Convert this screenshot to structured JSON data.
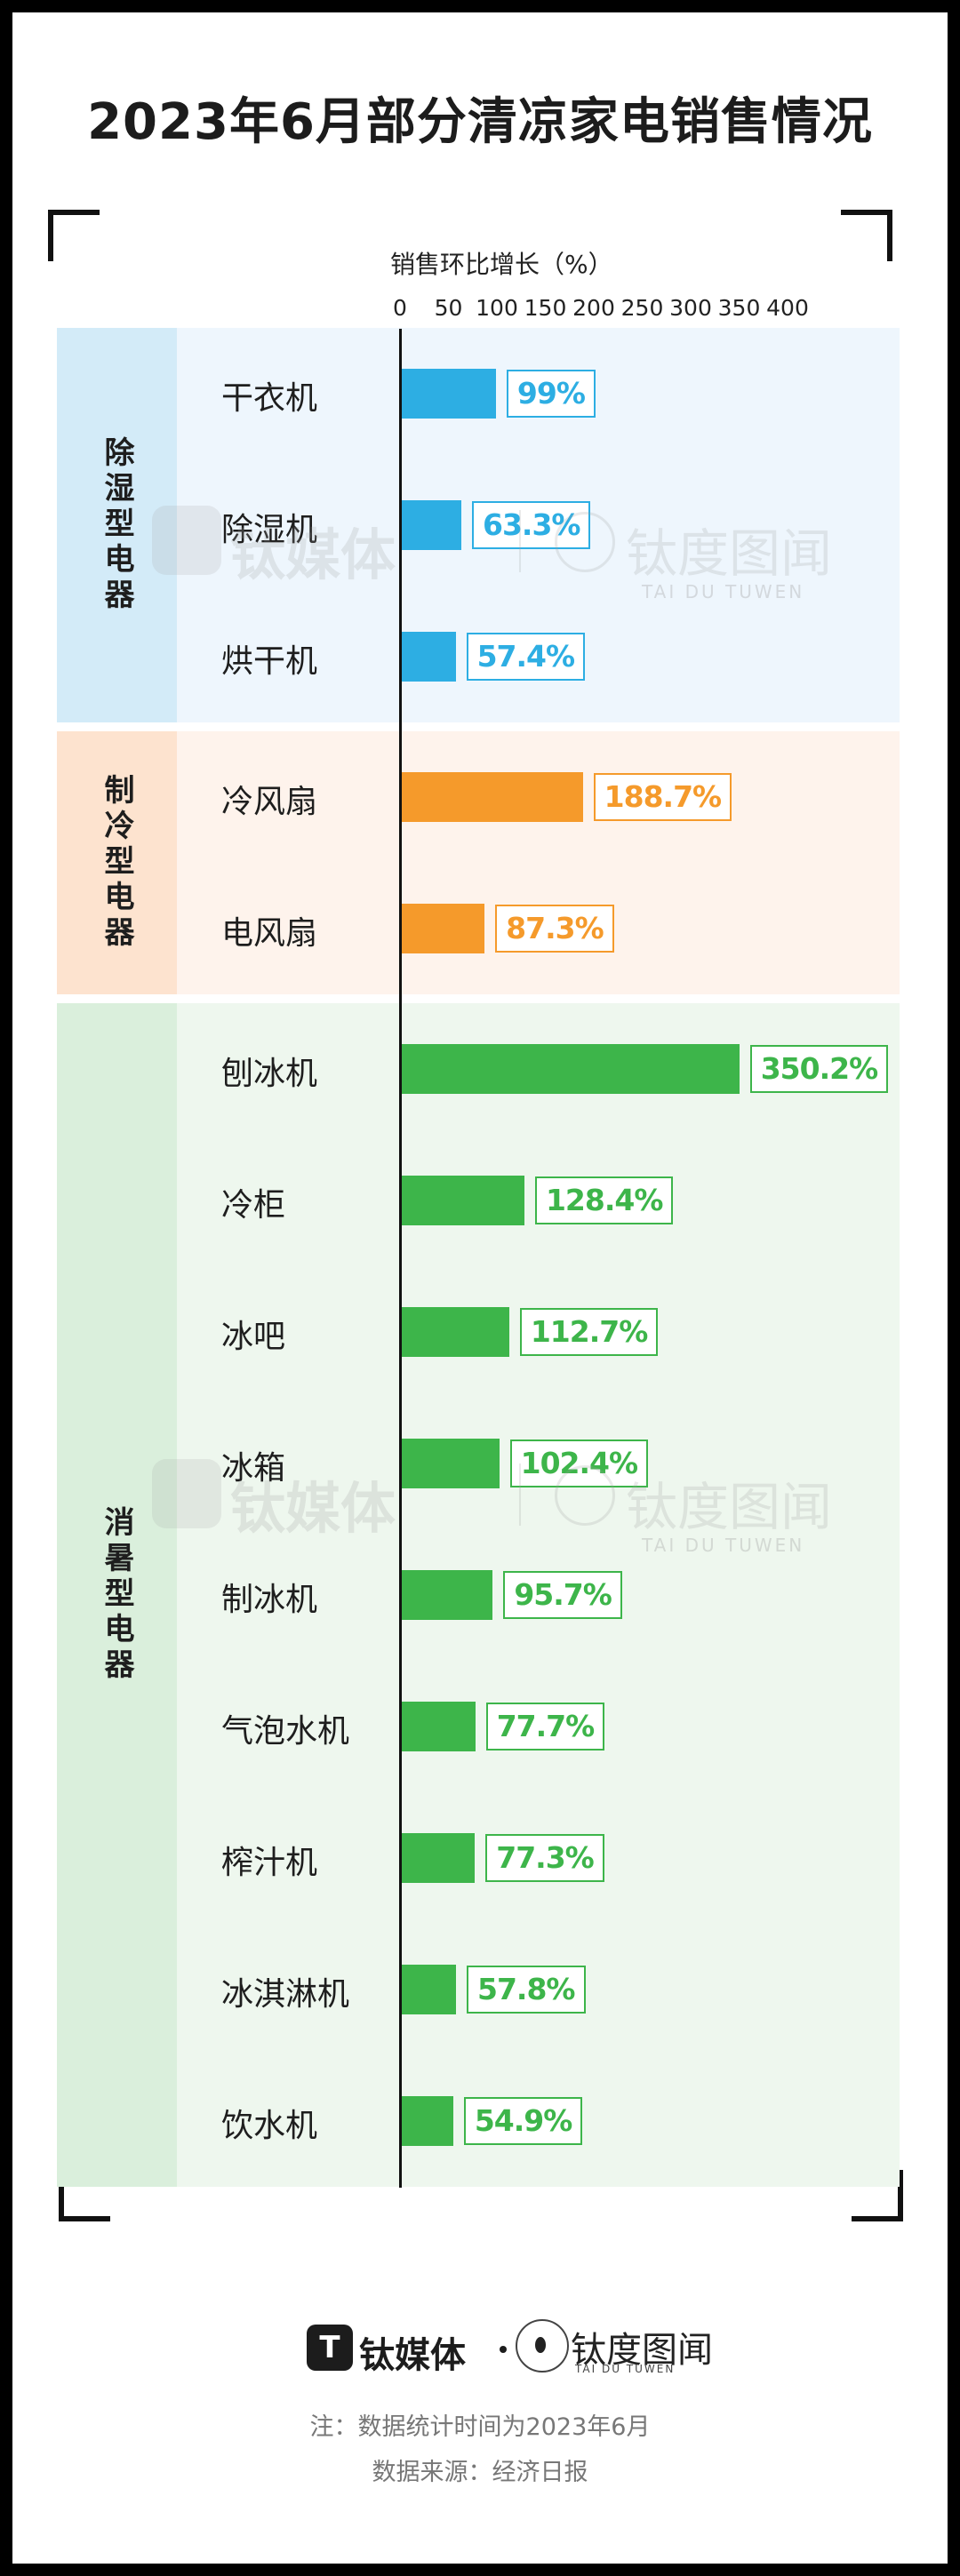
{
  "title": "2023年6月部分清凉家电销售情况",
  "watermark": {
    "brand": "钛媒体",
    "brand2": "钛度图闻",
    "brand2_sub": "TAI DU TUWEN"
  },
  "colors": {
    "dehumid": "#2daee3",
    "cooling": "#f59a2b",
    "summer": "#3db54a"
  },
  "chart_data": {
    "type": "bar",
    "orientation": "horizontal",
    "title": "2023年6月部分清凉家电销售情况",
    "xlabel": "销售环比增长（%）",
    "ylabel": "",
    "xlim": [
      0,
      400
    ],
    "xticks": [
      "0",
      "50",
      "100",
      "150",
      "200",
      "250",
      "300",
      "350",
      "400"
    ],
    "groups": [
      {
        "name": "除湿型电器",
        "color": "#2daee3",
        "band_color": "#eef6fd",
        "label_color": "#d3ebf8",
        "items": [
          {
            "category": "干衣机",
            "value": 99,
            "label": "99%"
          },
          {
            "category": "除湿机",
            "value": 63.3,
            "label": "63.3%"
          },
          {
            "category": "烘干机",
            "value": 57.4,
            "label": "57.4%"
          }
        ]
      },
      {
        "name": "制冷型电器",
        "color": "#f59a2b",
        "band_color": "#fef3ec",
        "label_color": "#fde3cf",
        "items": [
          {
            "category": "冷风扇",
            "value": 188.7,
            "label": "188.7%"
          },
          {
            "category": "电风扇",
            "value": 87.3,
            "label": "87.3%"
          }
        ]
      },
      {
        "name": "消暑型电器",
        "color": "#3db54a",
        "band_color": "#eef7ee",
        "label_color": "#daefdc",
        "items": [
          {
            "category": "刨冰机",
            "value": 350.2,
            "label": "350.2%"
          },
          {
            "category": "冷柜",
            "value": 128.4,
            "label": "128.4%"
          },
          {
            "category": "冰吧",
            "value": 112.7,
            "label": "112.7%"
          },
          {
            "category": "冰箱",
            "value": 102.4,
            "label": "102.4%"
          },
          {
            "category": "制冰机",
            "value": 95.7,
            "label": "95.7%"
          },
          {
            "category": "气泡水机",
            "value": 77.7,
            "label": "77.7%"
          },
          {
            "category": "榨汁机",
            "value": 77.3,
            "label": "77.3%"
          },
          {
            "category": "冰淇淋机",
            "value": 57.8,
            "label": "57.8%"
          },
          {
            "category": "饮水机",
            "value": 54.9,
            "label": "54.9%"
          }
        ]
      }
    ]
  },
  "footer": {
    "logo_letter": "T",
    "brand": "钛媒体",
    "brand2": "钛度图闻",
    "brand2_sub": "TAI DU TUWEN",
    "note": "注：数据统计时间为2023年6月",
    "source": "数据来源：经济日报"
  }
}
